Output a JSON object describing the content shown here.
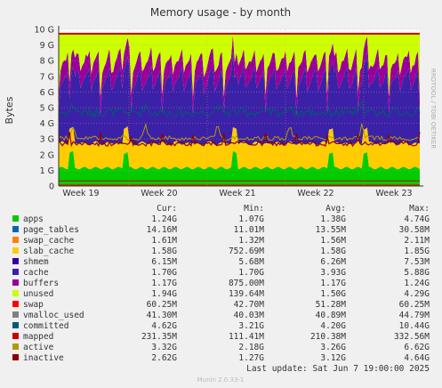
{
  "chart_data": {
    "type": "area",
    "title": "Memory usage - by month",
    "ylabel": "Bytes",
    "side_label": "RRDTOOL / TOBI OETIKER",
    "ylim": [
      0,
      10
    ],
    "y_unit": "G",
    "yticks": [
      "0",
      "1 G",
      "2 G",
      "3 G",
      "4 G",
      "5 G",
      "6 G",
      "7 G",
      "8 G",
      "9 G",
      "10 G"
    ],
    "x_categories": [
      "Week 19",
      "Week 20",
      "Week 21",
      "Week 22",
      "Week 23"
    ],
    "grid": true,
    "total_memory_line_G": 9.72,
    "header": {
      "cur": "Cur:",
      "min": "Min:",
      "avg": "Avg:",
      "max": "Max:"
    },
    "series": [
      {
        "name": "apps",
        "color": "#00cc00",
        "cur": "1.24G",
        "min": "1.07G",
        "avg": "1.38G",
        "max": "4.74G"
      },
      {
        "name": "page_tables",
        "color": "#0066b3",
        "cur": "14.16M",
        "min": "11.01M",
        "avg": "13.55M",
        "max": "30.58M"
      },
      {
        "name": "swap_cache",
        "color": "#ff8000",
        "cur": "1.61M",
        "min": "1.32M",
        "avg": "1.56M",
        "max": "2.11M"
      },
      {
        "name": "slab_cache",
        "color": "#ffcc00",
        "cur": "1.58G",
        "min": "752.69M",
        "avg": "1.58G",
        "max": "1.85G"
      },
      {
        "name": "shmem",
        "color": "#330099",
        "cur": "6.15M",
        "min": "5.68M",
        "avg": "6.26M",
        "max": "7.53M"
      },
      {
        "name": "cache",
        "color": "#3a21a8",
        "cur": "1.70G",
        "min": "1.70G",
        "avg": "3.93G",
        "max": "5.88G"
      },
      {
        "name": "buffers",
        "color": "#990099",
        "cur": "1.17G",
        "min": "875.00M",
        "avg": "1.17G",
        "max": "1.24G"
      },
      {
        "name": "unused",
        "color": "#ccff00",
        "cur": "1.94G",
        "min": "139.64M",
        "avg": "1.50G",
        "max": "4.29G"
      },
      {
        "name": "swap",
        "color": "#ff0000",
        "cur": "60.25M",
        "min": "42.70M",
        "avg": "51.28M",
        "max": "60.25M"
      },
      {
        "name": "vmalloc_used",
        "color": "#808080",
        "cur": "41.30M",
        "min": "40.03M",
        "avg": "40.89M",
        "max": "44.79M"
      },
      {
        "name": "committed",
        "color": "#005b73",
        "cur": "4.62G",
        "min": "3.21G",
        "avg": "4.20G",
        "max": "10.44G"
      },
      {
        "name": "mapped",
        "color": "#cc0000",
        "cur": "231.35M",
        "min": "111.41M",
        "avg": "210.38M",
        "max": "332.56M"
      },
      {
        "name": "active",
        "color": "#b39900",
        "cur": "3.32G",
        "min": "2.18G",
        "avg": "3.26G",
        "max": "6.62G"
      },
      {
        "name": "inactive",
        "color": "#8c0000",
        "cur": "2.62G",
        "min": "1.27G",
        "avg": "3.12G",
        "max": "4.64G"
      }
    ],
    "last_update": "Last update:  Sat Jun  7 19:00:00 2025",
    "footer": "Munin 2.0.33-1"
  }
}
